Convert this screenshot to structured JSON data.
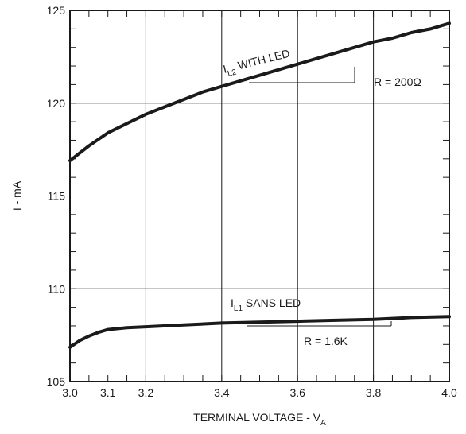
{
  "chart_data": {
    "type": "line",
    "xlabel": "TERMINAL VOLTAGE - V",
    "xlabel_sub": "A",
    "ylabel": "I - mA",
    "xlim": [
      3.0,
      4.0
    ],
    "ylim": [
      105,
      125
    ],
    "x_ticks": [
      3.0,
      3.1,
      3.2,
      3.4,
      3.6,
      3.8,
      4.0
    ],
    "x_tick_labels": [
      "3.0",
      "3.1",
      "3.2",
      "3.4",
      "3.6",
      "3.8",
      "4.0"
    ],
    "y_ticks": [
      105,
      110,
      115,
      120,
      125
    ],
    "y_tick_labels": [
      "105",
      "110",
      "115",
      "120",
      "125"
    ],
    "x_gridlines": [
      3.2,
      3.4,
      3.6,
      3.8
    ],
    "y_gridlines": [
      110,
      115,
      120
    ],
    "grid": true,
    "series": [
      {
        "name": "I",
        "name_sub": "L2",
        "name_rest": " WITH LED",
        "color": "#1a1a1a",
        "x": [
          3.0,
          3.05,
          3.1,
          3.15,
          3.2,
          3.25,
          3.3,
          3.35,
          3.4,
          3.45,
          3.5,
          3.55,
          3.6,
          3.65,
          3.7,
          3.75,
          3.8,
          3.85,
          3.9,
          3.95,
          4.0
        ],
        "y": [
          116.9,
          117.7,
          118.4,
          118.9,
          119.4,
          119.8,
          120.2,
          120.6,
          120.9,
          121.2,
          121.5,
          121.8,
          122.1,
          122.4,
          122.7,
          123.0,
          123.3,
          123.5,
          123.8,
          124.0,
          124.3
        ]
      },
      {
        "name": "I",
        "name_sub": "L1",
        "name_rest": " SANS LED",
        "color": "#1a1a1a",
        "x": [
          3.0,
          3.025,
          3.05,
          3.075,
          3.1,
          3.15,
          3.2,
          3.3,
          3.4,
          3.5,
          3.6,
          3.7,
          3.8,
          3.9,
          4.0
        ],
        "y": [
          106.85,
          107.2,
          107.45,
          107.65,
          107.8,
          107.9,
          107.95,
          108.05,
          108.15,
          108.2,
          108.25,
          108.3,
          108.35,
          108.45,
          108.5
        ]
      }
    ],
    "annotations": [
      {
        "text": "R = 200Ω",
        "series": 0
      },
      {
        "text": "R = 1.6K",
        "series": 1
      }
    ]
  }
}
